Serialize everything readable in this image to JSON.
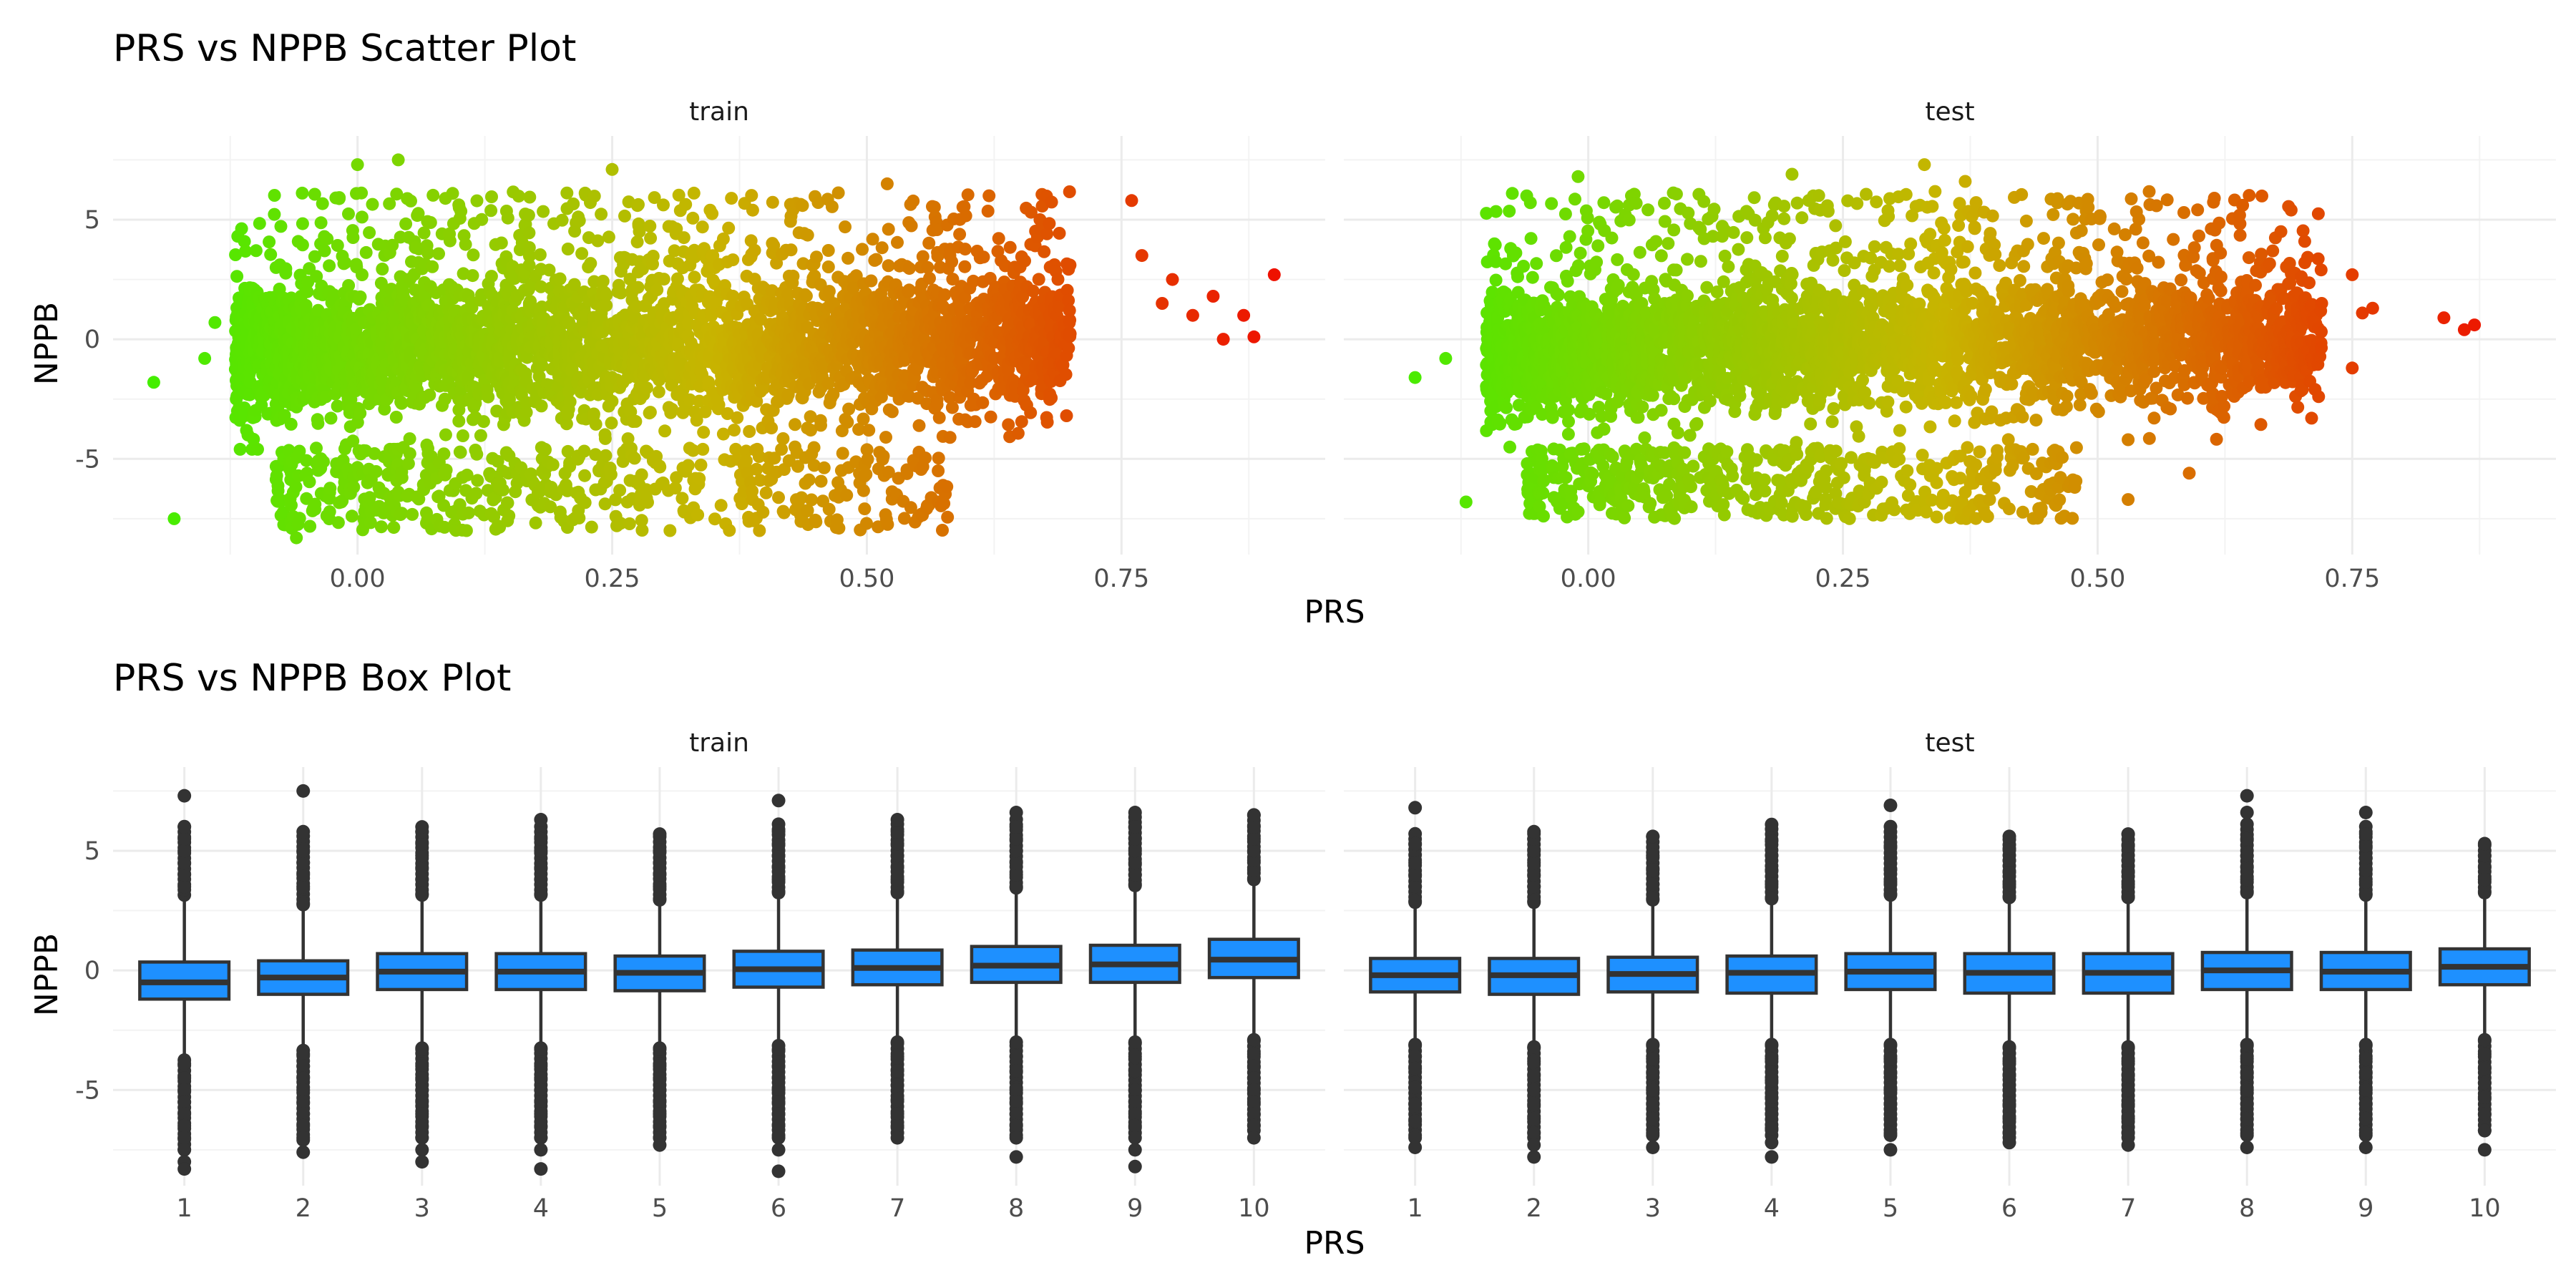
{
  "figure": {
    "scatter_title": "PRS vs NPPB Scatter Plot",
    "box_title": "PRS vs NPPB Box Plot",
    "x_axis_title": "PRS",
    "y_axis_title": "NPPB"
  },
  "colors": {
    "low": "#44ee00",
    "mid": "#c8b400",
    "high": "#ee1100",
    "box_fill": "#1e90ff",
    "box_line": "#333333"
  },
  "chart_data": [
    {
      "type": "scatter",
      "title": "PRS vs NPPB Scatter Plot",
      "xlabel": "PRS",
      "ylabel": "NPPB",
      "color_encoding": "PRS (green low → yellow → red high)",
      "xlim": [
        -0.24,
        0.95
      ],
      "ylim": [
        -9.0,
        8.5
      ],
      "x_ticks": [
        "0.00",
        "0.25",
        "0.50",
        "0.75"
      ],
      "x_tick_values": [
        0.0,
        0.25,
        0.5,
        0.75
      ],
      "y_ticks": [
        "5",
        "0",
        "-5"
      ],
      "y_tick_values": [
        5,
        0,
        -5
      ],
      "grid": true,
      "facets": [
        {
          "name": "train",
          "main_cloud": {
            "x_range": [
              -0.12,
              0.7
            ],
            "y_center": -0.3,
            "y_spread": 2.0,
            "y_max": 7.4,
            "y_min": -8.4
          },
          "lower_band": {
            "x_range": [
              -0.08,
              0.58
            ],
            "y_range": [
              -8.0,
              -4.5
            ]
          },
          "notable_points": [
            {
              "x": -0.2,
              "y": -1.8
            },
            {
              "x": -0.18,
              "y": -7.5
            },
            {
              "x": -0.15,
              "y": -0.8
            },
            {
              "x": -0.14,
              "y": 0.7
            },
            {
              "x": -0.08,
              "y": 3.0
            },
            {
              "x": -0.06,
              "y": -8.3
            },
            {
              "x": 0.0,
              "y": 7.3
            },
            {
              "x": 0.04,
              "y": 7.5
            },
            {
              "x": 0.25,
              "y": 7.1
            },
            {
              "x": 0.52,
              "y": 6.5
            },
            {
              "x": 0.62,
              "y": 6.0
            },
            {
              "x": 0.67,
              "y": 5.0
            },
            {
              "x": 0.76,
              "y": 5.8
            },
            {
              "x": 0.77,
              "y": 3.5
            },
            {
              "x": 0.79,
              "y": 1.5
            },
            {
              "x": 0.8,
              "y": 2.5
            },
            {
              "x": 0.82,
              "y": 1.0
            },
            {
              "x": 0.84,
              "y": 1.8
            },
            {
              "x": 0.85,
              "y": 0.0
            },
            {
              "x": 0.87,
              "y": 1.0
            },
            {
              "x": 0.88,
              "y": 0.1
            },
            {
              "x": 0.9,
              "y": 2.7
            },
            {
              "x": 0.57,
              "y": -5.5
            },
            {
              "x": 0.57,
              "y": -6.8
            }
          ]
        },
        {
          "name": "test",
          "main_cloud": {
            "x_range": [
              -0.1,
              0.72
            ],
            "y_center": -0.2,
            "y_spread": 1.8,
            "y_max": 7.3,
            "y_min": -7.8
          },
          "lower_band": {
            "x_range": [
              -0.06,
              0.48
            ],
            "y_range": [
              -7.5,
              -4.5
            ]
          },
          "notable_points": [
            {
              "x": -0.17,
              "y": -1.6
            },
            {
              "x": -0.14,
              "y": -0.8
            },
            {
              "x": -0.12,
              "y": -6.8
            },
            {
              "x": -0.01,
              "y": 6.8
            },
            {
              "x": 0.2,
              "y": 6.9
            },
            {
              "x": 0.33,
              "y": 7.3
            },
            {
              "x": 0.37,
              "y": 6.6
            },
            {
              "x": 0.69,
              "y": 5.4
            },
            {
              "x": 0.68,
              "y": 4.5
            },
            {
              "x": 0.72,
              "y": 1.5
            },
            {
              "x": 0.75,
              "y": 2.7
            },
            {
              "x": 0.75,
              "y": -1.2
            },
            {
              "x": 0.76,
              "y": 1.1
            },
            {
              "x": 0.77,
              "y": 1.3
            },
            {
              "x": 0.84,
              "y": 0.9
            },
            {
              "x": 0.86,
              "y": 0.4
            },
            {
              "x": 0.87,
              "y": 0.6
            },
            {
              "x": 0.59,
              "y": -5.6
            },
            {
              "x": 0.53,
              "y": -4.2
            },
            {
              "x": 0.53,
              "y": -6.7
            }
          ]
        }
      ]
    },
    {
      "type": "box",
      "title": "PRS vs NPPB Box Plot",
      "xlabel": "PRS",
      "ylabel": "NPPB",
      "categories": [
        "1",
        "2",
        "3",
        "4",
        "5",
        "6",
        "7",
        "8",
        "9",
        "10"
      ],
      "ylim": [
        -9.0,
        8.5
      ],
      "y_ticks": [
        "5",
        "0",
        "-5"
      ],
      "y_tick_values": [
        5,
        0,
        -5
      ],
      "grid": true,
      "facets": [
        {
          "name": "train",
          "boxes": [
            {
              "q1": -1.2,
              "median": -0.5,
              "q3": 0.35,
              "whisker_low": -3.5,
              "whisker_high": 2.9,
              "outliers_high": [
                3.5,
                4.0,
                4.5,
                5.0,
                5.5,
                6.0,
                7.3
              ],
              "outliers_low": [
                -3.9,
                -4.5,
                -5.0,
                -5.5,
                -6.0,
                -6.5,
                -7.0,
                -7.5,
                -8.0,
                -8.3
              ]
            },
            {
              "q1": -1.0,
              "median": -0.3,
              "q3": 0.4,
              "whisker_low": -3.1,
              "whisker_high": 2.5,
              "outliers_high": [
                2.8,
                3.5,
                4.0,
                4.5,
                5.0,
                5.8,
                7.5
              ],
              "outliers_low": [
                -3.5,
                -4.0,
                -4.5,
                -5.0,
                -5.5,
                -6.0,
                -6.5,
                -7.0,
                -7.6
              ]
            },
            {
              "q1": -0.8,
              "median": -0.05,
              "q3": 0.7,
              "whisker_low": -3.0,
              "whisker_high": 2.9,
              "outliers_high": [
                3.2,
                3.8,
                4.3,
                4.8,
                5.3,
                5.8,
                6.0
              ],
              "outliers_low": [
                -3.3,
                -4.0,
                -4.5,
                -5.0,
                -5.5,
                -6.0,
                -6.5,
                -7.0,
                -7.5,
                -8.0
              ]
            },
            {
              "q1": -0.8,
              "median": -0.05,
              "q3": 0.7,
              "whisker_low": -3.0,
              "whisker_high": 2.9,
              "outliers_high": [
                3.2,
                3.8,
                4.3,
                5.0,
                5.5,
                6.3
              ],
              "outliers_low": [
                -3.3,
                -4.0,
                -4.5,
                -5.0,
                -5.5,
                -6.0,
                -6.5,
                -7.0,
                -7.5,
                -8.3
              ]
            },
            {
              "q1": -0.85,
              "median": -0.1,
              "q3": 0.6,
              "whisker_low": -3.0,
              "whisker_high": 2.7,
              "outliers_high": [
                3.0,
                3.5,
                4.0,
                4.5,
                5.0,
                5.7
              ],
              "outliers_low": [
                -3.3,
                -4.0,
                -4.5,
                -5.0,
                -5.5,
                -6.0,
                -6.5,
                -7.0,
                -7.3
              ]
            },
            {
              "q1": -0.7,
              "median": 0.05,
              "q3": 0.8,
              "whisker_low": -2.9,
              "whisker_high": 3.0,
              "outliers_high": [
                3.3,
                3.8,
                4.3,
                4.8,
                5.3,
                5.8,
                7.1
              ],
              "outliers_low": [
                -3.3,
                -4.0,
                -4.5,
                -5.0,
                -5.5,
                -6.0,
                -6.5,
                -7.0,
                -7.5,
                -8.4
              ]
            },
            {
              "q1": -0.6,
              "median": 0.1,
              "q3": 0.85,
              "whisker_low": -2.8,
              "whisker_high": 3.0,
              "outliers_high": [
                3.3,
                3.8,
                4.3,
                4.8,
                5.3,
                5.8,
                6.3
              ],
              "outliers_low": [
                -3.0,
                -3.6,
                -4.2,
                -4.8,
                -5.4,
                -6.0,
                -6.5,
                -7.0
              ]
            },
            {
              "q1": -0.5,
              "median": 0.2,
              "q3": 1.0,
              "whisker_low": -2.9,
              "whisker_high": 3.2,
              "outliers_high": [
                3.5,
                4.0,
                4.5,
                5.0,
                5.5,
                6.0,
                6.6
              ],
              "outliers_low": [
                -3.0,
                -3.6,
                -4.2,
                -5.0,
                -5.5,
                -6.0,
                -6.5,
                -7.0,
                -7.8
              ]
            },
            {
              "q1": -0.5,
              "median": 0.25,
              "q3": 1.05,
              "whisker_low": -2.8,
              "whisker_high": 3.3,
              "outliers_high": [
                3.6,
                4.0,
                4.5,
                5.0,
                5.5,
                6.0,
                6.6
              ],
              "outliers_low": [
                -3.0,
                -3.6,
                -4.2,
                -5.0,
                -5.5,
                -6.0,
                -6.5,
                -7.0,
                -7.5,
                -8.2
              ]
            },
            {
              "q1": -0.3,
              "median": 0.45,
              "q3": 1.3,
              "whisker_low": -2.7,
              "whisker_high": 3.6,
              "outliers_high": [
                3.8,
                4.2,
                4.6,
                5.0,
                5.5,
                6.0,
                6.5
              ],
              "outliers_low": [
                -2.9,
                -3.5,
                -4.0,
                -4.5,
                -5.0,
                -5.5,
                -6.0,
                -6.5,
                -7.0
              ]
            }
          ]
        },
        {
          "name": "test",
          "boxes": [
            {
              "q1": -0.9,
              "median": -0.2,
              "q3": 0.5,
              "whisker_low": -2.9,
              "whisker_high": 2.6,
              "outliers_high": [
                2.9,
                3.5,
                4.0,
                4.5,
                5.3,
                6.8
              ],
              "outliers_low": [
                -3.1,
                -3.6,
                -4.1,
                -4.9,
                -5.6,
                -6.3,
                -7.0,
                -7.4
              ]
            },
            {
              "q1": -1.0,
              "median": -0.2,
              "q3": 0.5,
              "whisker_low": -3.0,
              "whisker_high": 2.6,
              "outliers_high": [
                2.9,
                3.5,
                4.0,
                4.5,
                5.0,
                5.5,
                5.8
              ],
              "outliers_low": [
                -3.2,
                -3.8,
                -4.4,
                -5.0,
                -5.6,
                -6.2,
                -6.8,
                -7.3,
                -7.8
              ]
            },
            {
              "q1": -0.9,
              "median": -0.15,
              "q3": 0.55,
              "whisker_low": -2.9,
              "whisker_high": 2.7,
              "outliers_high": [
                3.0,
                3.6,
                4.2,
                4.8,
                5.6
              ],
              "outliers_low": [
                -3.1,
                -3.7,
                -4.3,
                -5.0,
                -5.6,
                -6.2,
                -6.8,
                -7.4
              ]
            },
            {
              "q1": -0.95,
              "median": -0.1,
              "q3": 0.6,
              "whisker_low": -2.9,
              "whisker_high": 2.8,
              "outliers_high": [
                3.0,
                3.6,
                4.2,
                4.8,
                5.4,
                6.1
              ],
              "outliers_low": [
                -3.1,
                -3.7,
                -4.6,
                -5.3,
                -6.0,
                -6.6,
                -7.2,
                -7.8
              ]
            },
            {
              "q1": -0.8,
              "median": -0.05,
              "q3": 0.7,
              "whisker_low": -2.9,
              "whisker_high": 2.9,
              "outliers_high": [
                3.2,
                3.7,
                4.2,
                4.7,
                5.2,
                6.9
              ],
              "outliers_low": [
                -3.1,
                -3.7,
                -4.3,
                -5.0,
                -5.6,
                -6.2,
                -6.8,
                -7.5
              ]
            },
            {
              "q1": -0.95,
              "median": -0.1,
              "q3": 0.7,
              "whisker_low": -3.0,
              "whisker_high": 2.8,
              "outliers_high": [
                3.1,
                3.6,
                4.1,
                4.6,
                5.1,
                5.6
              ],
              "outliers_low": [
                -3.2,
                -3.8,
                -4.4,
                -5.0,
                -5.6,
                -6.2,
                -6.8,
                -7.2
              ]
            },
            {
              "q1": -0.95,
              "median": -0.1,
              "q3": 0.7,
              "whisker_low": -3.0,
              "whisker_high": 2.8,
              "outliers_high": [
                3.1,
                3.6,
                4.1,
                4.6,
                5.2,
                5.7
              ],
              "outliers_low": [
                -3.2,
                -3.8,
                -4.4,
                -5.0,
                -5.6,
                -6.2,
                -6.8,
                -7.3
              ]
            },
            {
              "q1": -0.8,
              "median": 0.0,
              "q3": 0.75,
              "whisker_low": -2.9,
              "whisker_high": 3.0,
              "outliers_high": [
                3.3,
                3.8,
                4.3,
                4.8,
                5.5,
                6.6,
                7.3
              ],
              "outliers_low": [
                -3.1,
                -3.7,
                -4.3,
                -5.0,
                -5.6,
                -6.2,
                -6.8,
                -7.4
              ]
            },
            {
              "q1": -0.8,
              "median": -0.05,
              "q3": 0.75,
              "whisker_low": -2.9,
              "whisker_high": 2.9,
              "outliers_high": [
                3.2,
                3.7,
                4.2,
                4.7,
                5.2,
                5.7,
                6.6
              ],
              "outliers_low": [
                -3.1,
                -3.7,
                -4.3,
                -5.0,
                -5.6,
                -6.2,
                -6.8,
                -7.4
              ]
            },
            {
              "q1": -0.6,
              "median": 0.15,
              "q3": 0.9,
              "whisker_low": -2.7,
              "whisker_high": 3.0,
              "outliers_high": [
                3.3,
                3.8,
                4.3,
                4.8,
                5.3
              ],
              "outliers_low": [
                -2.9,
                -3.5,
                -4.1,
                -4.7,
                -5.3,
                -6.0,
                -6.7,
                -7.5
              ]
            }
          ]
        }
      ]
    }
  ]
}
